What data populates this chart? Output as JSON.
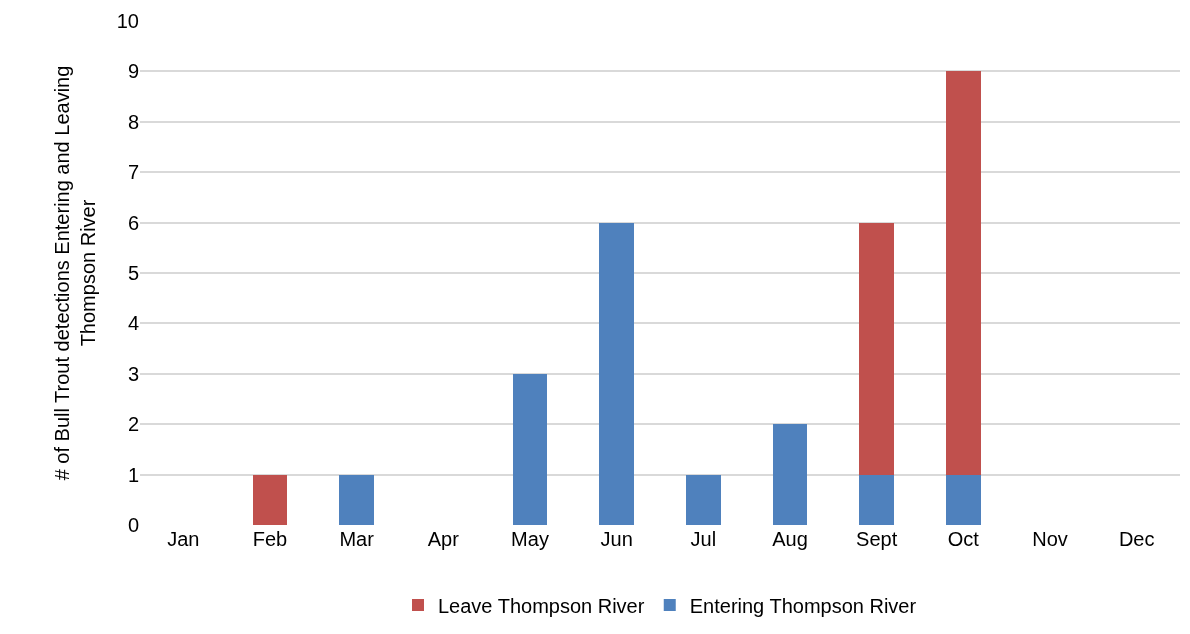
{
  "chart_data": {
    "type": "bar",
    "stacked": true,
    "ylabel": "# of Bull Trout detections Entering and Leaving\nThompson River",
    "categories": [
      "Jan",
      "Feb",
      "Mar",
      "Apr",
      "May",
      "Jun",
      "Jul",
      "Aug",
      "Sept",
      "Oct",
      "Nov",
      "Dec"
    ],
    "series": [
      {
        "name": "Entering Thompson River",
        "color": "#4f81bd",
        "values": [
          0,
          0,
          1,
          0,
          3,
          6,
          1,
          2,
          1,
          1,
          0,
          0
        ]
      },
      {
        "name": "Leave Thompson River",
        "color": "#c0504d",
        "values": [
          0,
          1,
          0,
          0,
          0,
          0,
          0,
          0,
          5,
          8,
          0,
          0
        ]
      }
    ],
    "ylim": [
      0,
      10
    ],
    "yticks": [
      0,
      1,
      2,
      3,
      4,
      5,
      6,
      7,
      8,
      9,
      10
    ],
    "grid": "y",
    "legend": "bottom"
  }
}
